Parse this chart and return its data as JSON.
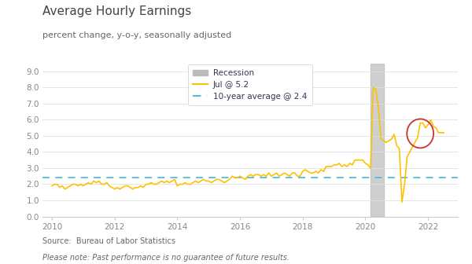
{
  "title": "Average Hourly Earnings",
  "subtitle": "percent change, y-o-y, seasonally adjusted",
  "source": "Source:  Bureau of Labor Statistics",
  "note": "Please note: Past performance is no guarantee of future results.",
  "ten_year_avg": 2.4,
  "recession_start": 2020.17,
  "recession_end": 2020.58,
  "ylim": [
    0.0,
    9.5
  ],
  "yticks": [
    0.0,
    1.0,
    2.0,
    3.0,
    4.0,
    5.0,
    6.0,
    7.0,
    8.0,
    9.0
  ],
  "xlim": [
    2009.7,
    2022.95
  ],
  "xticks": [
    2010,
    2012,
    2014,
    2016,
    2018,
    2020,
    2022
  ],
  "line_color": "#FFC000",
  "avg_line_color": "#55BBDD",
  "recession_color": "#BBBBBB",
  "circle_color": "#CC3333",
  "background_color": "#FFFFFF",
  "legend_recession_label": "Recession",
  "legend_line_label": "Jul @ 5.2",
  "legend_avg_label": "10-year average @ 2.4",
  "title_color": "#444444",
  "subtitle_color": "#666666",
  "tick_color": "#888888",
  "footer_color": "#666666",
  "dates": [
    2010.0,
    2010.083,
    2010.167,
    2010.25,
    2010.333,
    2010.417,
    2010.5,
    2010.583,
    2010.667,
    2010.75,
    2010.833,
    2010.917,
    2011.0,
    2011.083,
    2011.167,
    2011.25,
    2011.333,
    2011.417,
    2011.5,
    2011.583,
    2011.667,
    2011.75,
    2011.833,
    2011.917,
    2012.0,
    2012.083,
    2012.167,
    2012.25,
    2012.333,
    2012.417,
    2012.5,
    2012.583,
    2012.667,
    2012.75,
    2012.833,
    2012.917,
    2013.0,
    2013.083,
    2013.167,
    2013.25,
    2013.333,
    2013.417,
    2013.5,
    2013.583,
    2013.667,
    2013.75,
    2013.833,
    2013.917,
    2014.0,
    2014.083,
    2014.167,
    2014.25,
    2014.333,
    2014.417,
    2014.5,
    2014.583,
    2014.667,
    2014.75,
    2014.833,
    2014.917,
    2015.0,
    2015.083,
    2015.167,
    2015.25,
    2015.333,
    2015.417,
    2015.5,
    2015.583,
    2015.667,
    2015.75,
    2015.833,
    2015.917,
    2016.0,
    2016.083,
    2016.167,
    2016.25,
    2016.333,
    2016.417,
    2016.5,
    2016.583,
    2016.667,
    2016.75,
    2016.833,
    2016.917,
    2017.0,
    2017.083,
    2017.167,
    2017.25,
    2017.333,
    2017.417,
    2017.5,
    2017.583,
    2017.667,
    2017.75,
    2017.833,
    2017.917,
    2018.0,
    2018.083,
    2018.167,
    2018.25,
    2018.333,
    2018.417,
    2018.5,
    2018.583,
    2018.667,
    2018.75,
    2018.833,
    2018.917,
    2019.0,
    2019.083,
    2019.167,
    2019.25,
    2019.333,
    2019.417,
    2019.5,
    2019.583,
    2019.667,
    2019.75,
    2019.833,
    2019.917,
    2020.0,
    2020.083,
    2020.167,
    2020.25,
    2020.333,
    2020.417,
    2020.5,
    2020.583,
    2020.667,
    2020.75,
    2020.833,
    2020.917,
    2021.0,
    2021.083,
    2021.167,
    2021.25,
    2021.333,
    2021.417,
    2021.5,
    2021.583,
    2021.667,
    2021.75,
    2021.833,
    2021.917,
    2022.0,
    2022.083,
    2022.167,
    2022.25,
    2022.333,
    2022.417,
    2022.5
  ],
  "values": [
    1.9,
    2.0,
    2.0,
    1.8,
    1.9,
    1.7,
    1.8,
    1.9,
    2.0,
    2.0,
    1.9,
    2.0,
    1.9,
    2.0,
    2.1,
    2.0,
    2.2,
    2.1,
    2.2,
    2.0,
    2.0,
    2.1,
    1.9,
    1.8,
    1.7,
    1.8,
    1.7,
    1.8,
    1.9,
    1.9,
    1.8,
    1.7,
    1.8,
    1.8,
    1.9,
    1.8,
    2.0,
    2.0,
    2.1,
    2.0,
    2.0,
    2.1,
    2.2,
    2.1,
    2.2,
    2.1,
    2.2,
    2.3,
    1.9,
    2.0,
    2.0,
    2.1,
    2.0,
    2.0,
    2.1,
    2.2,
    2.1,
    2.2,
    2.3,
    2.2,
    2.2,
    2.1,
    2.2,
    2.3,
    2.3,
    2.2,
    2.1,
    2.2,
    2.3,
    2.5,
    2.4,
    2.4,
    2.5,
    2.4,
    2.3,
    2.5,
    2.6,
    2.5,
    2.6,
    2.6,
    2.5,
    2.6,
    2.5,
    2.7,
    2.5,
    2.6,
    2.7,
    2.5,
    2.6,
    2.7,
    2.6,
    2.5,
    2.7,
    2.7,
    2.5,
    2.5,
    2.8,
    2.9,
    2.8,
    2.7,
    2.7,
    2.8,
    2.7,
    2.9,
    2.8,
    3.1,
    3.1,
    3.1,
    3.2,
    3.2,
    3.3,
    3.1,
    3.2,
    3.1,
    3.3,
    3.2,
    3.5,
    3.5,
    3.5,
    3.5,
    3.3,
    3.2,
    3.0,
    8.0,
    7.9,
    6.7,
    4.8,
    4.7,
    4.6,
    4.7,
    4.8,
    5.1,
    4.4,
    4.2,
    0.9,
    2.0,
    3.7,
    4.0,
    4.3,
    4.6,
    4.9,
    5.8,
    5.8,
    5.5,
    5.7,
    6.0,
    5.6,
    5.5,
    5.2,
    5.2,
    5.2
  ]
}
